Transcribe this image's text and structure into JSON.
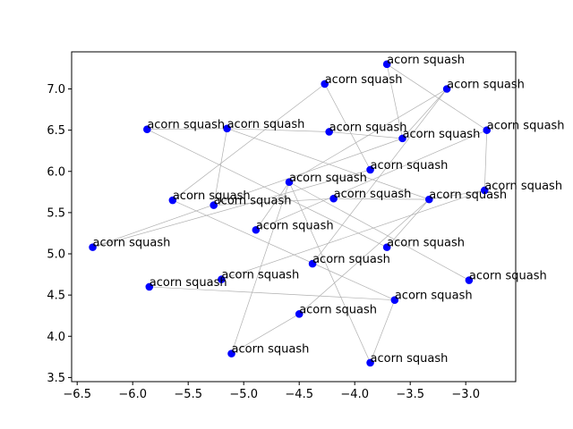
{
  "chart_data": {
    "type": "scatter",
    "title": "",
    "xlabel": "",
    "ylabel": "",
    "xlim": [
      -6.55,
      -2.55
    ],
    "ylim": [
      3.45,
      7.45
    ],
    "xticks": [
      -6.5,
      -6.0,
      -5.5,
      -5.0,
      -4.5,
      -4.0,
      -3.5,
      -3.0
    ],
    "xtick_labels": [
      "−6.5",
      "−6.0",
      "−5.5",
      "−5.0",
      "−4.5",
      "−4.0",
      "−3.5",
      "−3.0"
    ],
    "yticks": [
      3.5,
      4.0,
      4.5,
      5.0,
      5.5,
      6.0,
      6.5,
      7.0
    ],
    "ytick_labels": [
      "3.5",
      "4.0",
      "4.5",
      "5.0",
      "5.5",
      "6.0",
      "6.5",
      "7.0"
    ],
    "grid": false,
    "point_color": "#0000ff",
    "edge_color": "#b0b0b0",
    "points": [
      {
        "x": -3.71,
        "y": 7.3,
        "label": "acorn squash"
      },
      {
        "x": -4.27,
        "y": 7.06,
        "label": "acorn squash"
      },
      {
        "x": -3.17,
        "y": 7.0,
        "label": "acorn squash"
      },
      {
        "x": -5.87,
        "y": 6.51,
        "label": "acorn squash"
      },
      {
        "x": -5.15,
        "y": 6.52,
        "label": "acorn squash"
      },
      {
        "x": -4.23,
        "y": 6.48,
        "label": "acorn squash"
      },
      {
        "x": -3.57,
        "y": 6.4,
        "label": "acorn squash"
      },
      {
        "x": -2.81,
        "y": 6.5,
        "label": "acorn squash"
      },
      {
        "x": -3.86,
        "y": 6.02,
        "label": "acorn squash"
      },
      {
        "x": -4.59,
        "y": 5.87,
        "label": "acorn squash"
      },
      {
        "x": -2.83,
        "y": 5.77,
        "label": "acorn squash"
      },
      {
        "x": -5.64,
        "y": 5.65,
        "label": "acorn squash"
      },
      {
        "x": -4.19,
        "y": 5.67,
        "label": "acorn squash"
      },
      {
        "x": -3.33,
        "y": 5.66,
        "label": "acorn squash"
      },
      {
        "x": -5.27,
        "y": 5.59,
        "label": "acorn squash"
      },
      {
        "x": -6.36,
        "y": 5.08,
        "label": "acorn squash"
      },
      {
        "x": -4.89,
        "y": 5.29,
        "label": "acorn squash"
      },
      {
        "x": -3.71,
        "y": 5.08,
        "label": "acorn squash"
      },
      {
        "x": -4.38,
        "y": 4.88,
        "label": "acorn squash"
      },
      {
        "x": -5.2,
        "y": 4.69,
        "label": "acorn squash"
      },
      {
        "x": -2.97,
        "y": 4.68,
        "label": "acorn squash"
      },
      {
        "x": -5.85,
        "y": 4.6,
        "label": "acorn squash"
      },
      {
        "x": -3.64,
        "y": 4.44,
        "label": "acorn squash"
      },
      {
        "x": -4.5,
        "y": 4.27,
        "label": "acorn squash"
      },
      {
        "x": -5.11,
        "y": 3.79,
        "label": "acorn squash"
      },
      {
        "x": -3.86,
        "y": 3.68,
        "label": "acorn squash"
      }
    ],
    "edges": [
      [
        0,
        6
      ],
      [
        0,
        7
      ],
      [
        1,
        8
      ],
      [
        1,
        11
      ],
      [
        2,
        9
      ],
      [
        2,
        6
      ],
      [
        3,
        4
      ],
      [
        3,
        17
      ],
      [
        4,
        5
      ],
      [
        4,
        13
      ],
      [
        5,
        6
      ],
      [
        6,
        15
      ],
      [
        7,
        10
      ],
      [
        8,
        15
      ],
      [
        9,
        20
      ],
      [
        9,
        24
      ],
      [
        10,
        13
      ],
      [
        10,
        19
      ],
      [
        11,
        22
      ],
      [
        12,
        13
      ],
      [
        12,
        14
      ],
      [
        2,
        18
      ],
      [
        16,
        9
      ],
      [
        16,
        7
      ],
      [
        17,
        13
      ],
      [
        21,
        22
      ],
      [
        22,
        25
      ],
      [
        23,
        24
      ],
      [
        23,
        13
      ],
      [
        9,
        25
      ],
      [
        14,
        4
      ]
    ]
  }
}
